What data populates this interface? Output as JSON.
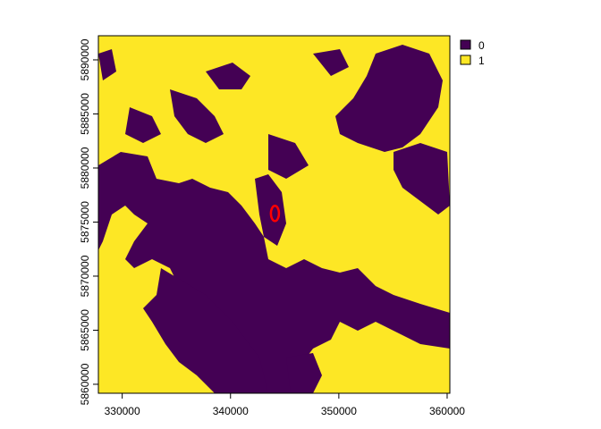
{
  "chart_data": {
    "type": "heatmap",
    "title": "",
    "xlabel": "",
    "ylabel": "",
    "xlim": [
      327800,
      360250
    ],
    "ylim": [
      5859170,
      5892230
    ],
    "x_ticks": [
      "330000",
      "340000",
      "350000",
      "360000"
    ],
    "x_tick_values": [
      330000,
      340000,
      350000,
      360000
    ],
    "y_ticks": [
      "5860000",
      "5865000",
      "5870000",
      "5875000",
      "5880000",
      "5885000",
      "5890000"
    ],
    "y_tick_values": [
      5860000,
      5865000,
      5870000,
      5875000,
      5880000,
      5885000,
      5890000
    ],
    "legend": {
      "placement": "top-right",
      "entries": [
        {
          "label": "0",
          "color": "#440154"
        },
        {
          "label": "1",
          "color": "#FDE725"
        }
      ]
    },
    "annotation": {
      "shape": "ellipse",
      "color": "#FF0000",
      "x": 344100,
      "y": 5875800
    }
  }
}
